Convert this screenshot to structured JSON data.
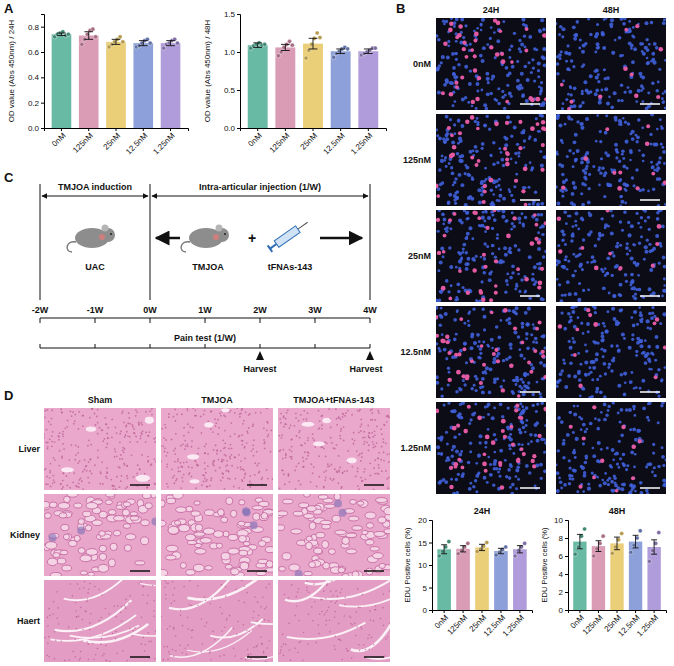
{
  "chart_data": [
    {
      "type": "bar",
      "ylabel": "OD value (Abs 450nm) / 24H",
      "categories": [
        "0nM",
        "125nM",
        "25nM",
        "12.5nM",
        "1.25nM"
      ],
      "values": [
        0.74,
        0.73,
        0.68,
        0.67,
        0.67
      ],
      "errors": [
        0.01,
        0.03,
        0.02,
        0.02,
        0.02
      ],
      "points": [
        [
          0.72,
          0.74,
          0.75,
          0.76,
          0.73,
          0.74
        ],
        [
          0.66,
          0.7,
          0.74,
          0.77,
          0.78,
          0.72
        ],
        [
          0.64,
          0.66,
          0.68,
          0.7,
          0.72,
          0.68
        ],
        [
          0.64,
          0.65,
          0.67,
          0.69,
          0.7,
          0.67
        ],
        [
          0.63,
          0.66,
          0.67,
          0.69,
          0.7,
          0.67
        ]
      ],
      "colors": [
        "#4fae95",
        "#d48aa7",
        "#e8c660",
        "#7a8fd3",
        "#a28bd4"
      ],
      "ylim": [
        0,
        0.9
      ],
      "yticks": [
        {
          "value": 0,
          "label": "0.0"
        },
        0.2,
        0.4,
        0.6,
        0.8
      ],
      "grid": false
    },
    {
      "type": "bar",
      "ylabel": "OD value (Abs 450nm) / 48H",
      "categories": [
        "0nM",
        "125nM",
        "25nM",
        "12.5nM",
        "1.25nM"
      ],
      "values": [
        1.09,
        1.06,
        1.11,
        1.01,
        1.01
      ],
      "errors": [
        0.03,
        0.04,
        0.07,
        0.03,
        0.03
      ],
      "points": [
        [
          1.05,
          1.08,
          1.1,
          1.12,
          1.09,
          1.1
        ],
        [
          0.95,
          1.0,
          1.06,
          1.1,
          1.14,
          1.09
        ],
        [
          0.92,
          1.02,
          1.1,
          1.18,
          1.25,
          1.19
        ],
        [
          0.93,
          0.98,
          1.01,
          1.04,
          1.06,
          1.04
        ],
        [
          0.96,
          0.98,
          1.0,
          1.02,
          1.05,
          1.05
        ]
      ],
      "colors": [
        "#4fae95",
        "#d48aa7",
        "#e8c660",
        "#7a8fd3",
        "#a28bd4"
      ],
      "ylim": [
        0,
        1.5
      ],
      "yticks": [
        {
          "value": 0,
          "label": "0.0"
        },
        0.5,
        {
          "value": 1,
          "label": "1.0"
        },
        1.5
      ],
      "grid": false
    },
    {
      "type": "bar",
      "title": "24H",
      "ylabel": "EDU Positive cells (%)",
      "categories": [
        "0nM",
        "125nM",
        "25nM",
        "12.5nM",
        "1.25nM"
      ],
      "values": [
        13.5,
        13.6,
        13.9,
        13.1,
        13.5
      ],
      "errors": [
        1.0,
        0.7,
        0.7,
        0.6,
        0.8
      ],
      "points": [
        [
          12.0,
          13.0,
          14.0,
          15.2
        ],
        [
          12.5,
          13.2,
          14.0,
          14.8
        ],
        [
          13.0,
          13.5,
          14.2,
          15.0
        ],
        [
          12.2,
          12.8,
          13.4,
          14.0
        ],
        [
          12.0,
          13.2,
          14.0,
          14.8
        ]
      ],
      "colors": [
        "#4fae95",
        "#d48aa7",
        "#e8c660",
        "#7a8fd3",
        "#a28bd4"
      ],
      "ylim": [
        0,
        20
      ],
      "yticks": [
        0,
        5,
        10,
        15,
        20
      ],
      "grid": false
    },
    {
      "type": "bar",
      "title": "48H",
      "ylabel": "EDU Positive cells (%)",
      "categories": [
        "0nM",
        "125nM",
        "25nM",
        "12.5nM",
        "1.25nM"
      ],
      "values": [
        7.6,
        7.1,
        7.4,
        7.6,
        7.0
      ],
      "errors": [
        0.8,
        0.6,
        0.7,
        0.7,
        0.8
      ],
      "points": [
        [
          6.2,
          7.0,
          8.2,
          9.0
        ],
        [
          6.0,
          6.8,
          7.4,
          8.2
        ],
        [
          6.3,
          7.0,
          7.8,
          8.5
        ],
        [
          6.4,
          7.2,
          8.0,
          8.8
        ],
        [
          5.4,
          6.6,
          7.4,
          8.6
        ]
      ],
      "colors": [
        "#4fae95",
        "#d48aa7",
        "#e8c660",
        "#7a8fd3",
        "#a28bd4"
      ],
      "ylim": [
        0,
        10
      ],
      "yticks": [
        0,
        2,
        4,
        6,
        8,
        10
      ],
      "grid": false
    }
  ],
  "panel_labels": [
    "A",
    "B",
    "C",
    "D"
  ],
  "panel_b": {
    "columns": [
      "24H",
      "48H"
    ],
    "rows": [
      "0nM",
      "125nM",
      "25nM",
      "12.5nM",
      "1.25nM"
    ]
  },
  "panel_c": {
    "phases": [
      "TMJOA induction",
      "Intra-articular injection (1/W)"
    ],
    "icons": [
      "UAC",
      "TMJOA",
      "tFNAs-143"
    ],
    "plus": "+",
    "weeks": [
      "-2W",
      "-1W",
      "0W",
      "1W",
      "2W",
      "3W",
      "4W"
    ],
    "pain_test": "Pain test (1/W)",
    "harvest": [
      "Harvest",
      "Harvest"
    ]
  },
  "panel_d": {
    "columns": [
      "Sham",
      "TMJOA",
      "TMJOA+tFNAs-143"
    ],
    "rows": [
      "Liver",
      "Kidney",
      "Haert"
    ]
  }
}
